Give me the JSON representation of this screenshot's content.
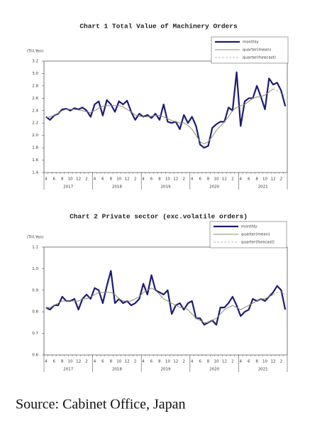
{
  "chart_data": [
    {
      "type": "line",
      "title": "Chart 1 Total Value of Machinery Orders",
      "y_label": "(Tril.Yen)",
      "categories": [
        "4",
        null,
        "6",
        null,
        "8",
        null,
        "10",
        null,
        "12",
        null,
        "2",
        null,
        "4",
        null,
        "6",
        null,
        "8",
        null,
        "10",
        null,
        "12",
        null,
        "2",
        null,
        "4",
        null,
        "6",
        null,
        "8",
        null,
        "10",
        null,
        "12",
        null,
        "2",
        null,
        "4",
        null,
        "6",
        null,
        "8",
        null,
        "10",
        null,
        "12",
        null,
        "2",
        null,
        "4",
        null,
        "6",
        null,
        "8",
        null,
        "10",
        null,
        "12",
        null,
        "2",
        null
      ],
      "x_groups": [
        "2017",
        "2018",
        "2019",
        "2020",
        "2021"
      ],
      "ylim": [
        1.4,
        3.2
      ],
      "yticks": [
        1.4,
        1.6,
        1.8,
        {
          "value": 2,
          "label": "2.0"
        },
        2.2,
        2.4,
        2.6,
        2.8,
        {
          "value": 3,
          "label": "3.0"
        },
        3.2
      ],
      "grid": false,
      "legend": "top-right",
      "series": [
        {
          "name": "monthly",
          "color": "#1c1c72",
          "style": "solid",
          "width": 2.2,
          "values": [
            2.3,
            2.25,
            2.32,
            2.35,
            2.42,
            2.43,
            2.4,
            2.44,
            2.42,
            2.45,
            2.4,
            2.3,
            2.5,
            2.55,
            2.32,
            2.57,
            2.5,
            2.38,
            2.55,
            2.5,
            2.56,
            2.38,
            2.25,
            2.35,
            2.3,
            2.33,
            2.28,
            2.35,
            2.25,
            2.5,
            2.22,
            2.2,
            2.22,
            2.1,
            2.33,
            2.2,
            2.3,
            2.15,
            1.85,
            1.8,
            1.83,
            2.12,
            2.18,
            2.22,
            2.22,
            2.45,
            2.4,
            3.02,
            2.15,
            2.55,
            2.6,
            2.6,
            2.8,
            2.62,
            2.42,
            2.92,
            2.82,
            2.85,
            2.72,
            2.47
          ]
        },
        {
          "name": "quarter(mean)",
          "color": "#8c8c70",
          "style": "solid",
          "width": 1,
          "values": [
            2.28,
            2.3,
            2.32,
            2.36,
            2.4,
            2.42,
            2.42,
            2.42,
            2.41,
            2.4,
            2.38,
            2.37,
            2.4,
            2.44,
            2.47,
            2.48,
            2.48,
            2.48,
            2.48,
            2.46,
            2.42,
            2.38,
            2.33,
            2.31,
            2.3,
            2.3,
            2.31,
            2.32,
            2.32,
            2.3,
            2.27,
            2.24,
            2.22,
            2.2,
            2.2,
            2.16,
            2.1,
            2.0,
            1.9,
            1.86,
            1.9,
            1.98,
            2.08,
            2.15,
            2.22,
            2.3,
            2.4,
            2.45,
            2.48,
            2.5,
            2.55,
            2.6,
            2.62,
            2.63,
            2.65,
            2.7,
            2.75,
            null,
            null,
            null
          ]
        },
        {
          "name": "quarter(forecast)",
          "color": "#b8b8b8",
          "style": "dashed",
          "width": 1,
          "values": [
            null,
            null,
            null,
            null,
            null,
            null,
            null,
            null,
            null,
            null,
            null,
            null,
            null,
            null,
            null,
            null,
            null,
            null,
            null,
            null,
            null,
            null,
            null,
            null,
            null,
            null,
            null,
            null,
            null,
            null,
            null,
            null,
            null,
            null,
            null,
            null,
            null,
            null,
            null,
            null,
            null,
            null,
            null,
            null,
            null,
            null,
            null,
            null,
            null,
            null,
            null,
            null,
            null,
            null,
            null,
            null,
            2.75,
            2.72,
            2.68,
            2.64
          ]
        }
      ]
    },
    {
      "type": "line",
      "title": "Chart 2 Private sector (exc.volatile orders)",
      "y_label": "(Tril.Yen)",
      "categories": [
        "4",
        null,
        "6",
        null,
        "8",
        null,
        "10",
        null,
        "12",
        null,
        "2",
        null,
        "4",
        null,
        "6",
        null,
        "8",
        null,
        "10",
        null,
        "12",
        null,
        "2",
        null,
        "4",
        null,
        "6",
        null,
        "8",
        null,
        "10",
        null,
        "12",
        null,
        "2",
        null,
        "4",
        null,
        "6",
        null,
        "8",
        null,
        "10",
        null,
        "12",
        null,
        "2",
        null,
        "4",
        null,
        "6",
        null,
        "8",
        null,
        "10",
        null,
        "12",
        null,
        "2",
        null
      ],
      "x_groups": [
        "2017",
        "2018",
        "2019",
        "2020",
        "2021"
      ],
      "ylim": [
        0.6,
        1.1
      ],
      "yticks": [
        0.6,
        0.7,
        0.8,
        0.9,
        {
          "value": 1,
          "label": "1.0"
        },
        1.1
      ],
      "grid": false,
      "legend": "top-right",
      "series": [
        {
          "name": "monthly",
          "color": "#1c1c72",
          "style": "solid",
          "width": 2.2,
          "values": [
            0.82,
            0.81,
            0.83,
            0.83,
            0.87,
            0.85,
            0.85,
            0.86,
            0.81,
            0.86,
            0.88,
            0.86,
            0.91,
            0.9,
            0.84,
            0.92,
            0.99,
            0.84,
            0.86,
            0.84,
            0.85,
            0.83,
            0.84,
            0.86,
            0.93,
            0.88,
            0.97,
            0.9,
            0.89,
            0.88,
            0.9,
            0.79,
            0.83,
            0.84,
            0.81,
            0.84,
            0.85,
            0.77,
            0.77,
            0.74,
            0.75,
            0.76,
            0.74,
            0.82,
            0.82,
            0.84,
            0.87,
            0.83,
            0.78,
            0.8,
            0.81,
            0.86,
            0.85,
            0.86,
            0.85,
            0.87,
            0.89,
            0.92,
            0.9,
            0.81
          ]
        },
        {
          "name": "quarter(mean)",
          "color": "#8c8c70",
          "style": "solid",
          "width": 1,
          "values": [
            0.82,
            0.82,
            0.83,
            0.84,
            0.85,
            0.85,
            0.85,
            0.85,
            0.85,
            0.86,
            0.86,
            0.87,
            0.88,
            0.89,
            0.89,
            0.89,
            0.89,
            0.88,
            0.86,
            0.85,
            0.85,
            0.85,
            0.86,
            0.87,
            0.89,
            0.9,
            0.91,
            0.9,
            0.88,
            0.86,
            0.85,
            0.84,
            0.83,
            0.82,
            0.82,
            0.81,
            0.79,
            0.77,
            0.76,
            0.75,
            0.75,
            0.76,
            0.77,
            0.79,
            0.81,
            0.82,
            0.83,
            0.82,
            0.81,
            0.82,
            0.83,
            0.84,
            0.85,
            0.86,
            0.86,
            0.87,
            0.88,
            null,
            null,
            null
          ]
        },
        {
          "name": "quarter(forecast)",
          "color": "#b8b8b8",
          "style": "dashed",
          "width": 1,
          "values": [
            null,
            null,
            null,
            null,
            null,
            null,
            null,
            null,
            null,
            null,
            null,
            null,
            null,
            null,
            null,
            null,
            null,
            null,
            null,
            null,
            null,
            null,
            null,
            null,
            null,
            null,
            null,
            null,
            null,
            null,
            null,
            null,
            null,
            null,
            null,
            null,
            null,
            null,
            null,
            null,
            null,
            null,
            null,
            null,
            null,
            null,
            null,
            null,
            null,
            null,
            null,
            null,
            null,
            null,
            null,
            null,
            0.88,
            0.89,
            0.89,
            0.88
          ]
        }
      ]
    }
  ],
  "source": "Source: Cabinet Office, Japan"
}
